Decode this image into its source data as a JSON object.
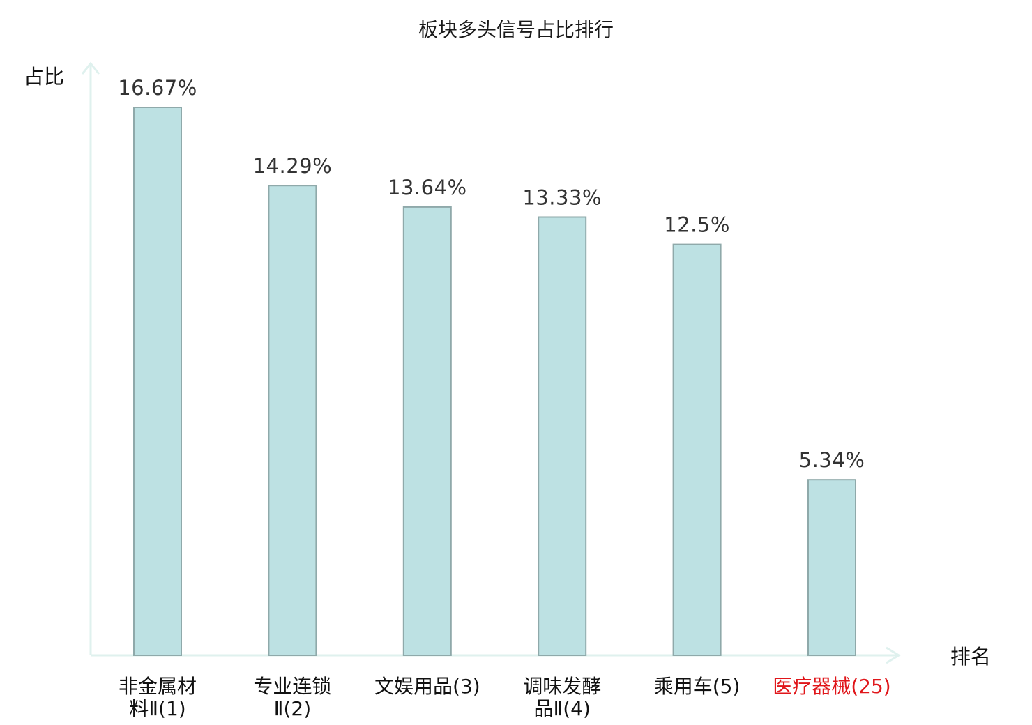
{
  "chart_data": {
    "type": "bar",
    "title": "板块多头信号占比排行",
    "ylabel": "占比",
    "xlabel": "排名",
    "ylim": [
      0,
      18
    ],
    "grid": false,
    "legend": "none",
    "categories": [
      {
        "lines": [
          "非金属材",
          "料Ⅱ(1)"
        ],
        "highlight": false
      },
      {
        "lines": [
          "专业连锁",
          "Ⅱ(2)"
        ],
        "highlight": false
      },
      {
        "lines": [
          "文娱用品(3)"
        ],
        "highlight": false
      },
      {
        "lines": [
          "调味发酵",
          "品Ⅱ(4)"
        ],
        "highlight": false
      },
      {
        "lines": [
          "乘用车(5)"
        ],
        "highlight": false
      },
      {
        "lines": [
          "医疗器械(25)"
        ],
        "highlight": true
      }
    ],
    "values": [
      16.67,
      14.29,
      13.64,
      13.33,
      12.5,
      5.34
    ],
    "value_labels": [
      "16.67%",
      "14.29%",
      "13.64%",
      "13.33%",
      "12.5%",
      "5.34%"
    ]
  },
  "colors": {
    "bar_fill": "#bde1e3",
    "bar_stroke": "#8fa9aa",
    "axis": "#dff1ee",
    "label": "#333333",
    "highlight": "#e0161a"
  }
}
